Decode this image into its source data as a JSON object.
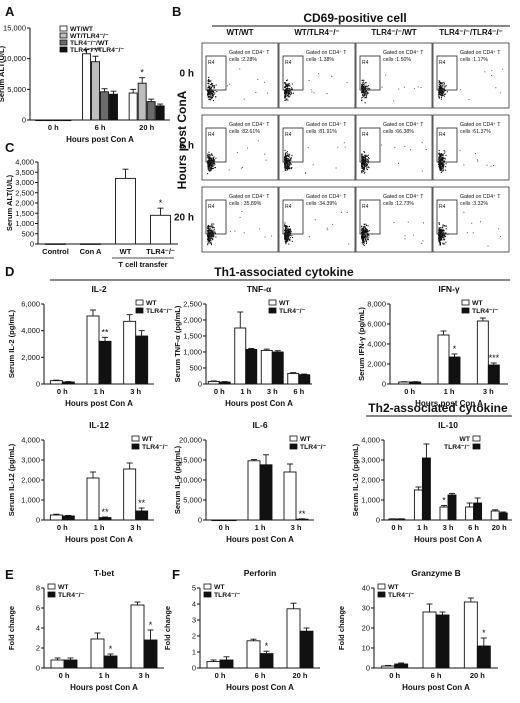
{
  "panel_letters": [
    "A",
    "B",
    "C",
    "D",
    "E",
    "F"
  ],
  "flow": {
    "title": "CD69-positive cell",
    "side_label": "Hours post ConA",
    "columns": [
      "WT/WT",
      "WT/TLR4⁻/⁻",
      "TLR4⁻/⁻/WT",
      "TLR4⁻/⁻/TLR4⁻/⁻"
    ],
    "rows": [
      "0 h",
      "6 h",
      "20 h"
    ],
    "gate_label": "R4",
    "gated_prefix": "Gated on CD4⁺ T",
    "values": [
      [
        "cells :2.28%",
        "cells :1.38%",
        "cells :1.50%",
        "cells :1.17%"
      ],
      [
        "cells :82.61%",
        "cells :81.91%",
        "cells :66.38%",
        "cells :61.37%"
      ],
      [
        "cells : 35.89%",
        "cells :34.39%",
        "cells :12.73%",
        "cells :3.32%"
      ]
    ]
  },
  "headers": {
    "th1": "Th1-associated cytokine",
    "th2": "Th2-associated cytokine"
  },
  "chart_data": [
    {
      "id": "A",
      "type": "bar",
      "xlabel": "Hours post Con A",
      "ylabel": "Serum ALT(U/L)",
      "ylim": [
        0,
        15000
      ],
      "yticks": [
        0,
        5000,
        10000,
        15000
      ],
      "categories": [
        "0 h",
        "6 h",
        "20 h"
      ],
      "legend_position": "top-left",
      "series": [
        {
          "name": "WT/WT",
          "values": [
            0,
            10800,
            4400
          ],
          "errors": [
            0,
            700,
            600
          ],
          "color": "#ffffff"
        },
        {
          "name": "WT/TLR4⁻/⁻",
          "values": [
            0,
            9500,
            6000
          ],
          "errors": [
            0,
            900,
            900
          ],
          "color": "#bdbdbd"
        },
        {
          "name": "TLR4⁻/⁻/WT",
          "values": [
            0,
            4600,
            3000
          ],
          "errors": [
            0,
            500,
            400
          ],
          "color": "#6b6b6b"
        },
        {
          "name": "TLR4⁻/⁻/TLR4⁻/⁻",
          "values": [
            0,
            4200,
            2300
          ],
          "errors": [
            0,
            500,
            300
          ],
          "color": "#111111"
        }
      ],
      "annotations": [
        {
          "category": 1,
          "series": 1,
          "text": "***"
        },
        {
          "category": 2,
          "series": 1,
          "text": "*"
        }
      ]
    },
    {
      "id": "C",
      "type": "bar",
      "ylabel": "Serum ALT(U/L)",
      "ylim": [
        0,
        4000
      ],
      "yticks": [
        0,
        500,
        1000,
        1500,
        2000,
        2500,
        3000,
        3500,
        4000
      ],
      "categories": [
        "Control",
        "Con A",
        "WT",
        "TLR4⁻/⁻"
      ],
      "group_label": "T cell transfer",
      "series": [
        {
          "values": [
            10,
            10,
            3200,
            1400
          ],
          "errors": [
            0,
            0,
            450,
            350
          ],
          "color": "#ffffff"
        }
      ],
      "annotations": [
        {
          "category": 3,
          "series": 0,
          "text": "*"
        }
      ]
    },
    {
      "id": "IL-2",
      "type": "bar",
      "title": "IL-2",
      "xlabel": "Hours post Con A",
      "ylabel": "Serum IL-2 (pg/mL)",
      "ylim": [
        0,
        6000
      ],
      "yticks": [
        0,
        2000,
        4000,
        6000
      ],
      "categories": [
        "0 h",
        "1 h",
        "3 h"
      ],
      "legend_position": "top-right",
      "series": [
        {
          "name": "WT",
          "values": [
            250,
            5100,
            4700
          ],
          "errors": [
            40,
            450,
            500
          ],
          "color": "#ffffff"
        },
        {
          "name": "TLR4⁻/⁻",
          "values": [
            150,
            3200,
            3600
          ],
          "errors": [
            30,
            300,
            400
          ],
          "color": "#111111"
        }
      ],
      "annotations": [
        {
          "category": 1,
          "series": 1,
          "text": "**"
        }
      ]
    },
    {
      "id": "TNF",
      "type": "bar",
      "title": "TNF-α",
      "xlabel": "Hours post Con A",
      "ylabel": "Serum TNF-α (pg/mL)",
      "ylim": [
        0,
        2500
      ],
      "yticks": [
        0,
        500,
        1000,
        1500,
        2000,
        2500
      ],
      "categories": [
        "0 h",
        "1 h",
        "3 h",
        "6 h"
      ],
      "legend_position": "top-right",
      "series": [
        {
          "name": "WT",
          "values": [
            80,
            1750,
            1050,
            330
          ],
          "errors": [
            15,
            500,
            40,
            25
          ],
          "color": "#ffffff"
        },
        {
          "name": "TLR4⁻/⁻",
          "values": [
            60,
            1080,
            1000,
            290
          ],
          "errors": [
            15,
            30,
            40,
            20
          ],
          "color": "#111111"
        }
      ]
    },
    {
      "id": "IFN",
      "type": "bar",
      "title": "IFN-γ",
      "xlabel": "Hours post Con A",
      "ylabel": "Serum IFN-γ (pg/mL)",
      "ylim": [
        0,
        8000
      ],
      "yticks": [
        0,
        2000,
        4000,
        6000,
        8000
      ],
      "categories": [
        "0 h",
        "1 h",
        "3 h"
      ],
      "legend_position": "top-right",
      "series": [
        {
          "name": "WT",
          "values": [
            200,
            4900,
            6300
          ],
          "errors": [
            30,
            400,
            300
          ],
          "color": "#ffffff"
        },
        {
          "name": "TLR4⁻/⁻",
          "values": [
            200,
            2700,
            1900
          ],
          "errors": [
            30,
            300,
            200
          ],
          "color": "#111111"
        }
      ],
      "annotations": [
        {
          "category": 1,
          "series": 1,
          "text": "*"
        },
        {
          "category": 2,
          "series": 1,
          "text": "***"
        }
      ]
    },
    {
      "id": "IL-12",
      "type": "bar",
      "title": "IL-12",
      "xlabel": "Hours post Con A",
      "ylabel": "Serum IL-12 (pg/mL)",
      "ylim": [
        0,
        4000
      ],
      "yticks": [
        0,
        1000,
        2000,
        3000,
        4000
      ],
      "categories": [
        "0 h",
        "1 h",
        "3 h"
      ],
      "legend_position": "top-right",
      "series": [
        {
          "name": "WT",
          "values": [
            250,
            2100,
            2550
          ],
          "errors": [
            40,
            300,
            300
          ],
          "color": "#ffffff"
        },
        {
          "name": "TLR4⁻/⁻",
          "values": [
            200,
            120,
            450
          ],
          "errors": [
            30,
            30,
            150
          ],
          "color": "#111111"
        }
      ],
      "annotations": [
        {
          "category": 1,
          "series": 1,
          "text": "**"
        },
        {
          "category": 2,
          "series": 1,
          "text": "**"
        }
      ]
    },
    {
      "id": "IL-6",
      "type": "bar",
      "title": "IL-6",
      "xlabel": "Hours post Con A",
      "ylabel": "Serum IL-6 (pg/mL)",
      "ylim": [
        0,
        20000
      ],
      "yticks": [
        0,
        5000,
        10000,
        15000,
        20000
      ],
      "categories": [
        "0 h",
        "1 h",
        "3 h"
      ],
      "legend_position": "top-right",
      "series": [
        {
          "name": "WT",
          "values": [
            0,
            14800,
            12000
          ],
          "errors": [
            0,
            300,
            2000
          ],
          "color": "#ffffff"
        },
        {
          "name": "TLR4⁻/⁻",
          "values": [
            0,
            13800,
            200
          ],
          "errors": [
            0,
            2500,
            100
          ],
          "color": "#111111"
        }
      ],
      "annotations": [
        {
          "category": 2,
          "series": 1,
          "text": "**"
        }
      ]
    },
    {
      "id": "IL-10",
      "type": "bar",
      "title": "IL-10",
      "xlabel": "Hours post Con A",
      "ylabel": "Serum IL-10 (pg/mL)",
      "ylim": [
        0,
        4000
      ],
      "yticks": [
        0,
        1000,
        2000,
        3000,
        4000
      ],
      "categories": [
        "0 h",
        "1 h",
        "3 h",
        "6 h",
        "20 h"
      ],
      "legend_position": "top-right",
      "series": [
        {
          "name": "WT",
          "values": [
            50,
            1500,
            650,
            650,
            450
          ],
          "errors": [
            10,
            150,
            80,
            200,
            60
          ],
          "color": "#ffffff"
        },
        {
          "name": "TLR4⁻/⁻",
          "values": [
            50,
            3100,
            1250,
            850,
            350
          ],
          "errors": [
            10,
            700,
            80,
            250,
            50
          ],
          "color": "#111111"
        }
      ],
      "annotations": [
        {
          "category": 2,
          "series": 0,
          "text": "*"
        }
      ]
    },
    {
      "id": "Tbet",
      "type": "bar",
      "title": "T-bet",
      "xlabel": "Hours post Con A",
      "ylabel": "Fold change",
      "ylim": [
        0,
        8
      ],
      "yticks": [
        0,
        2,
        4,
        6,
        8
      ],
      "categories": [
        "0 h",
        "1 h",
        "3 h"
      ],
      "legend_position": "top-left",
      "series": [
        {
          "name": "WT",
          "values": [
            0.8,
            2.9,
            6.3
          ],
          "errors": [
            0.2,
            0.6,
            0.3
          ],
          "color": "#ffffff"
        },
        {
          "name": "TLR4⁻/⁻",
          "values": [
            0.8,
            1.2,
            2.8
          ],
          "errors": [
            0.2,
            0.2,
            1.0
          ],
          "color": "#111111"
        }
      ],
      "annotations": [
        {
          "category": 1,
          "series": 1,
          "text": "*"
        },
        {
          "category": 2,
          "series": 1,
          "text": "*"
        }
      ]
    },
    {
      "id": "Perforin",
      "type": "bar",
      "title": "Perforin",
      "xlabel": "Hours post Con A",
      "ylabel": "Fold change",
      "ylim": [
        0,
        5
      ],
      "yticks": [
        0,
        1,
        2,
        3,
        4,
        5
      ],
      "categories": [
        "0 h",
        "6 h",
        "20 h"
      ],
      "legend_position": "top-left",
      "series": [
        {
          "name": "WT",
          "values": [
            0.4,
            1.7,
            3.7
          ],
          "errors": [
            0.1,
            0.1,
            0.35
          ],
          "color": "#ffffff"
        },
        {
          "name": "TLR4⁻/⁻",
          "values": [
            0.5,
            0.9,
            2.3
          ],
          "errors": [
            0.2,
            0.15,
            0.2
          ],
          "color": "#111111"
        }
      ],
      "annotations": [
        {
          "category": 1,
          "series": 1,
          "text": "*"
        }
      ]
    },
    {
      "id": "GranzymeB",
      "type": "bar",
      "title": "Granzyme B",
      "xlabel": "Hours post Con A",
      "ylabel": "Fold change",
      "ylim": [
        0,
        40
      ],
      "yticks": [
        0,
        10,
        20,
        30,
        40
      ],
      "categories": [
        "0 h",
        "6 h",
        "20 h"
      ],
      "legend_position": "top-left",
      "series": [
        {
          "name": "WT",
          "values": [
            1,
            28,
            33
          ],
          "errors": [
            0.3,
            4,
            2
          ],
          "color": "#ffffff"
        },
        {
          "name": "TLR4⁻/⁻",
          "values": [
            2,
            26.5,
            11
          ],
          "errors": [
            0.5,
            1.5,
            4
          ],
          "color": "#111111"
        }
      ],
      "annotations": [
        {
          "category": 2,
          "series": 1,
          "text": "*"
        }
      ]
    }
  ]
}
